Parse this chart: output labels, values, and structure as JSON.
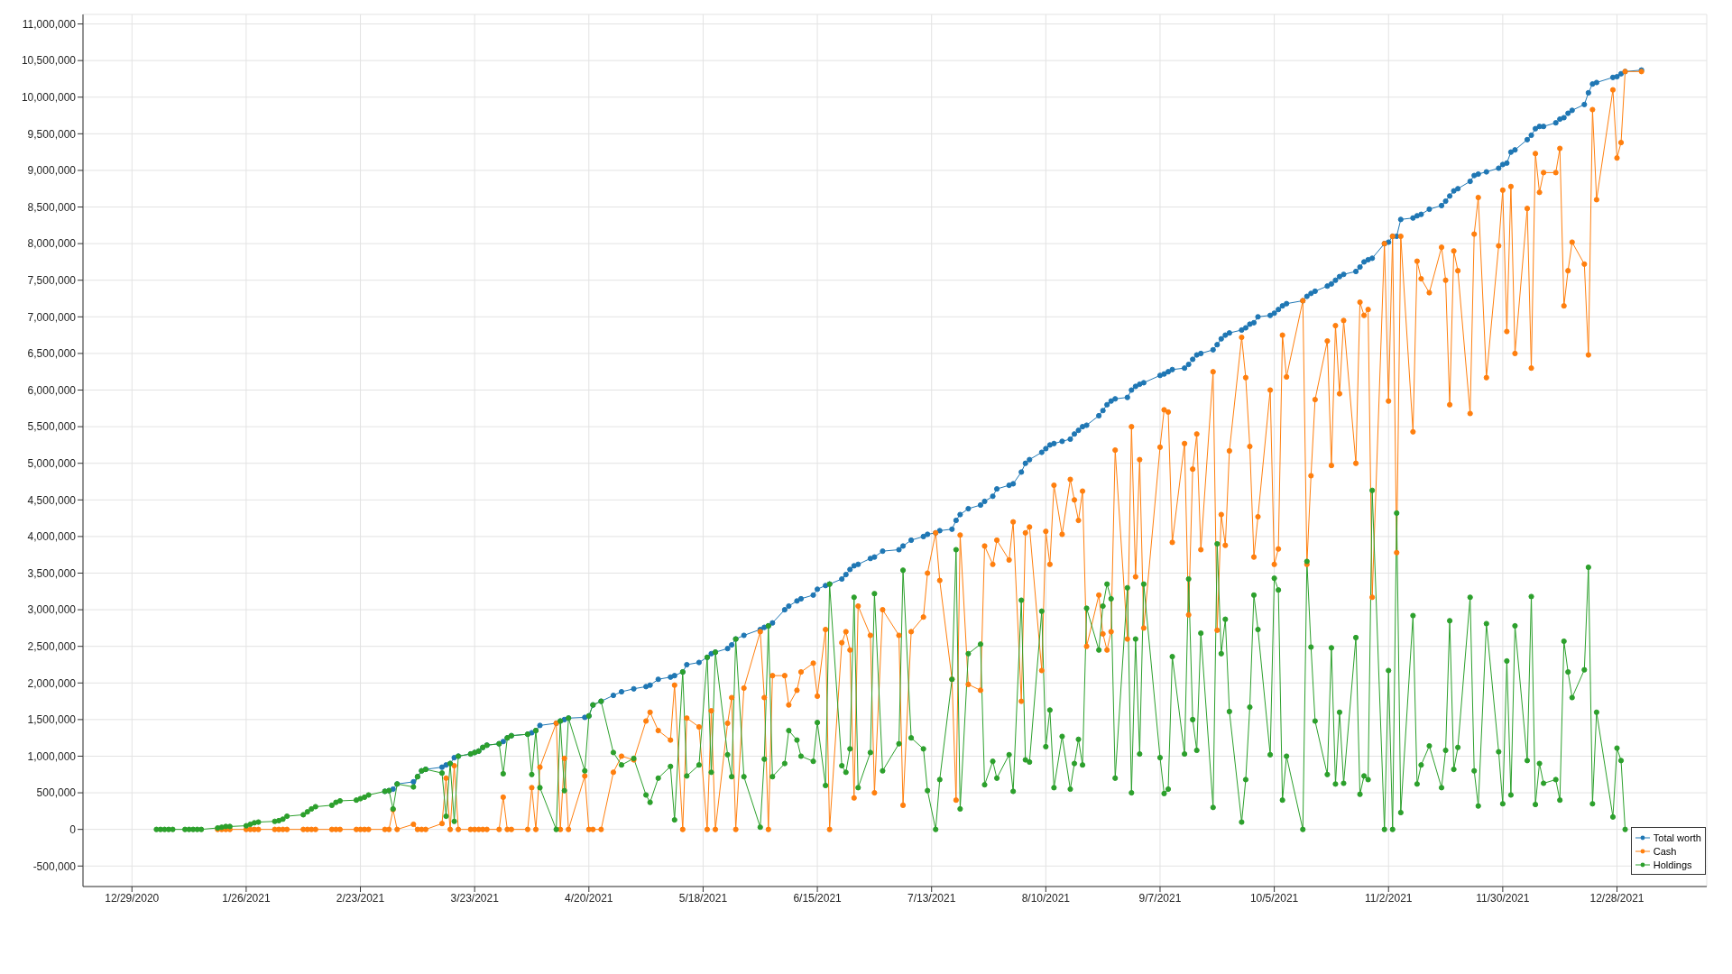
{
  "chart_data": {
    "type": "line",
    "x": [
      "2021-01-04",
      "2021-01-05",
      "2021-01-06",
      "2021-01-07",
      "2021-01-08",
      "2021-01-11",
      "2021-01-12",
      "2021-01-13",
      "2021-01-14",
      "2021-01-15",
      "2021-01-19",
      "2021-01-20",
      "2021-01-21",
      "2021-01-22",
      "2021-01-26",
      "2021-01-27",
      "2021-01-28",
      "2021-01-29",
      "2021-02-02",
      "2021-02-03",
      "2021-02-04",
      "2021-02-05",
      "2021-02-09",
      "2021-02-10",
      "2021-02-11",
      "2021-02-12",
      "2021-02-16",
      "2021-02-17",
      "2021-02-18",
      "2021-02-22",
      "2021-02-23",
      "2021-02-24",
      "2021-02-25",
      "2021-03-01",
      "2021-03-02",
      "2021-03-03",
      "2021-03-04",
      "2021-03-08",
      "2021-03-09",
      "2021-03-10",
      "2021-03-11",
      "2021-03-15",
      "2021-03-16",
      "2021-03-17",
      "2021-03-18",
      "2021-03-19",
      "2021-03-22",
      "2021-03-23",
      "2021-03-24",
      "2021-03-25",
      "2021-03-26",
      "2021-03-29",
      "2021-03-30",
      "2021-03-31",
      "2021-04-01",
      "2021-04-05",
      "2021-04-06",
      "2021-04-07",
      "2021-04-08",
      "2021-04-12",
      "2021-04-13",
      "2021-04-14",
      "2021-04-15",
      "2021-04-19",
      "2021-04-20",
      "2021-04-21",
      "2021-04-23",
      "2021-04-26",
      "2021-04-28",
      "2021-05-01",
      "2021-05-04",
      "2021-05-05",
      "2021-05-07",
      "2021-05-10",
      "2021-05-11",
      "2021-05-13",
      "2021-05-14",
      "2021-05-17",
      "2021-05-19",
      "2021-05-20",
      "2021-05-21",
      "2021-05-24",
      "2021-05-25",
      "2021-05-26",
      "2021-05-28",
      "2021-06-01",
      "2021-06-02",
      "2021-06-03",
      "2021-06-04",
      "2021-06-07",
      "2021-06-08",
      "2021-06-10",
      "2021-06-11",
      "2021-06-14",
      "2021-06-15",
      "2021-06-17",
      "2021-06-18",
      "2021-06-21",
      "2021-06-22",
      "2021-06-23",
      "2021-06-24",
      "2021-06-25",
      "2021-06-28",
      "2021-06-29",
      "2021-07-01",
      "2021-07-05",
      "2021-07-06",
      "2021-07-08",
      "2021-07-11",
      "2021-07-12",
      "2021-07-14",
      "2021-07-15",
      "2021-07-18",
      "2021-07-19",
      "2021-07-20",
      "2021-07-22",
      "2021-07-25",
      "2021-07-26",
      "2021-07-28",
      "2021-07-29",
      "2021-08-01",
      "2021-08-02",
      "2021-08-04",
      "2021-08-05",
      "2021-08-06",
      "2021-08-09",
      "2021-08-10",
      "2021-08-11",
      "2021-08-12",
      "2021-08-14",
      "2021-08-16",
      "2021-08-17",
      "2021-08-18",
      "2021-08-19",
      "2021-08-20",
      "2021-08-23",
      "2021-08-24",
      "2021-08-25",
      "2021-08-26",
      "2021-08-27",
      "2021-08-30",
      "2021-08-31",
      "2021-09-01",
      "2021-09-02",
      "2021-09-03",
      "2021-09-07",
      "2021-09-08",
      "2021-09-09",
      "2021-09-10",
      "2021-09-13",
      "2021-09-14",
      "2021-09-15",
      "2021-09-16",
      "2021-09-17",
      "2021-09-20",
      "2021-09-21",
      "2021-09-22",
      "2021-09-23",
      "2021-09-24",
      "2021-09-27",
      "2021-09-28",
      "2021-09-29",
      "2021-09-30",
      "2021-10-01",
      "2021-10-04",
      "2021-10-05",
      "2021-10-06",
      "2021-10-07",
      "2021-10-08",
      "2021-10-12",
      "2021-10-13",
      "2021-10-14",
      "2021-10-15",
      "2021-10-18",
      "2021-10-19",
      "2021-10-20",
      "2021-10-21",
      "2021-10-22",
      "2021-10-25",
      "2021-10-26",
      "2021-10-27",
      "2021-10-28",
      "2021-10-29",
      "2021-11-01",
      "2021-11-02",
      "2021-11-03",
      "2021-11-04",
      "2021-11-05",
      "2021-11-08",
      "2021-11-09",
      "2021-11-10",
      "2021-11-12",
      "2021-11-15",
      "2021-11-16",
      "2021-11-17",
      "2021-11-18",
      "2021-11-19",
      "2021-11-22",
      "2021-11-23",
      "2021-11-24",
      "2021-11-26",
      "2021-11-29",
      "2021-11-30",
      "2021-12-01",
      "2021-12-02",
      "2021-12-03",
      "2021-12-06",
      "2021-12-07",
      "2021-12-08",
      "2021-12-09",
      "2021-12-10",
      "2021-12-13",
      "2021-12-14",
      "2021-12-15",
      "2021-12-16",
      "2021-12-17",
      "2021-12-20",
      "2021-12-21",
      "2021-12-22",
      "2021-12-23",
      "2021-12-27",
      "2021-12-28",
      "2021-12-29",
      "2021-12-30",
      "2022-01-03"
    ],
    "series": [
      {
        "name": "Total worth",
        "color": "#1f77b4",
        "values": [
          null,
          null,
          null,
          null,
          null,
          null,
          null,
          null,
          null,
          null,
          null,
          null,
          null,
          null,
          null,
          null,
          null,
          null,
          null,
          null,
          null,
          null,
          null,
          null,
          null,
          null,
          null,
          null,
          null,
          null,
          null,
          null,
          null,
          520000,
          530000,
          550000,
          620000,
          650000,
          720000,
          800000,
          820000,
          850000,
          880000,
          900000,
          980000,
          1000000,
          1030000,
          1050000,
          1070000,
          1120000,
          1150000,
          1170000,
          1200000,
          1250000,
          1280000,
          1300000,
          1320000,
          1350000,
          1420000,
          1450000,
          1480000,
          1500000,
          1520000,
          1530000,
          1550000,
          1700000,
          1750000,
          1830000,
          1880000,
          1920000,
          1950000,
          1970000,
          2050000,
          2080000,
          2100000,
          2150000,
          2250000,
          2280000,
          2350000,
          2400000,
          2420000,
          2470000,
          2520000,
          2600000,
          2650000,
          2730000,
          2760000,
          2780000,
          2820000,
          3000000,
          3050000,
          3120000,
          3150000,
          3200000,
          3280000,
          3330000,
          3350000,
          3420000,
          3480000,
          3550000,
          3600000,
          3620000,
          3700000,
          3720000,
          3800000,
          3820000,
          3870000,
          3950000,
          4000000,
          4030000,
          4050000,
          4080000,
          4100000,
          4220000,
          4300000,
          4380000,
          4430000,
          4480000,
          4550000,
          4650000,
          4700000,
          4720000,
          4880000,
          5000000,
          5050000,
          5150000,
          5200000,
          5250000,
          5270000,
          5300000,
          5330000,
          5400000,
          5450000,
          5500000,
          5520000,
          5650000,
          5720000,
          5800000,
          5850000,
          5880000,
          5900000,
          6000000,
          6050000,
          6080000,
          6100000,
          6200000,
          6220000,
          6250000,
          6280000,
          6300000,
          6350000,
          6420000,
          6480000,
          6500000,
          6550000,
          6620000,
          6700000,
          6750000,
          6780000,
          6820000,
          6850000,
          6900000,
          6920000,
          7000000,
          7020000,
          7050000,
          7100000,
          7150000,
          7180000,
          7220000,
          7280000,
          7320000,
          7350000,
          7420000,
          7450000,
          7500000,
          7550000,
          7580000,
          7620000,
          7680000,
          7750000,
          7780000,
          7800000,
          8000000,
          8020000,
          8100000,
          8100000,
          8330000,
          8350000,
          8380000,
          8400000,
          8470000,
          8520000,
          8580000,
          8650000,
          8720000,
          8750000,
          8850000,
          8930000,
          8950000,
          8980000,
          9030000,
          9080000,
          9100000,
          9250000,
          9280000,
          9420000,
          9480000,
          9570000,
          9600000,
          9600000,
          9650000,
          9700000,
          9720000,
          9780000,
          9820000,
          9900000,
          10060000,
          10180000,
          10200000,
          10270000,
          10280000,
          10320000,
          10350000,
          10370000
        ]
      },
      {
        "name": "Cash",
        "color": "#ff7f0e",
        "values": [
          null,
          null,
          null,
          null,
          null,
          null,
          null,
          null,
          null,
          null,
          0,
          0,
          0,
          0,
          0,
          0,
          0,
          0,
          0,
          0,
          0,
          0,
          0,
          0,
          0,
          0,
          0,
          0,
          0,
          0,
          0,
          0,
          0,
          0,
          0,
          270000,
          0,
          70000,
          0,
          0,
          0,
          80000,
          700000,
          0,
          870000,
          0,
          0,
          0,
          0,
          0,
          0,
          0,
          440000,
          0,
          0,
          0,
          570000,
          0,
          850000,
          1450000,
          0,
          970000,
          0,
          730000,
          0,
          0,
          0,
          780000,
          1000000,
          950000,
          1480000,
          1600000,
          1350000,
          1220000,
          1970000,
          0,
          1520000,
          1400000,
          0,
          1620000,
          0,
          1450000,
          1800000,
          0,
          1930000,
          2700000,
          1800000,
          0,
          2100000,
          2100000,
          1700000,
          1900000,
          2150000,
          2270000,
          1820000,
          2730000,
          0,
          2550000,
          2700000,
          2450000,
          430000,
          3050000,
          2650000,
          500000,
          3000000,
          2650000,
          330000,
          2700000,
          2900000,
          3500000,
          4050000,
          3400000,
          2050000,
          400000,
          4020000,
          1980000,
          1900000,
          3870000,
          3620000,
          3950000,
          3680000,
          4200000,
          1750000,
          4050000,
          4130000,
          2170000,
          4070000,
          3620000,
          4700000,
          4030000,
          4780000,
          4500000,
          4220000,
          4620000,
          2500000,
          3200000,
          2670000,
          2450000,
          2700000,
          5180000,
          2600000,
          5500000,
          3450000,
          5050000,
          2750000,
          5220000,
          5730000,
          5700000,
          3920000,
          5270000,
          2930000,
          4920000,
          5400000,
          3820000,
          6250000,
          2720000,
          4300000,
          3880000,
          5170000,
          6720000,
          6170000,
          5230000,
          3720000,
          4270000,
          6000000,
          3620000,
          3830000,
          6750000,
          6180000,
          7220000,
          3620000,
          4830000,
          5870000,
          6670000,
          4970000,
          6880000,
          5950000,
          6950000,
          5000000,
          7200000,
          7020000,
          7100000,
          3170000,
          8000000,
          5850000,
          8100000,
          3780000,
          8100000,
          5430000,
          7760000,
          7520000,
          7330000,
          7950000,
          7500000,
          5800000,
          7900000,
          7630000,
          5680000,
          8130000,
          8630000,
          6170000,
          7970000,
          8730000,
          6800000,
          8780000,
          6500000,
          8480000,
          6300000,
          9230000,
          8700000,
          8970000,
          8970000,
          9300000,
          7150000,
          7630000,
          8020000,
          7720000,
          6480000,
          9830000,
          8600000,
          10100000,
          9170000,
          9380000,
          10350000,
          10350000
        ]
      },
      {
        "name": "Holdings",
        "color": "#2ca02c",
        "values": [
          0,
          0,
          0,
          0,
          0,
          0,
          0,
          0,
          0,
          0,
          20000,
          30000,
          40000,
          40000,
          50000,
          70000,
          90000,
          100000,
          110000,
          120000,
          140000,
          180000,
          200000,
          240000,
          280000,
          310000,
          330000,
          370000,
          390000,
          400000,
          420000,
          440000,
          470000,
          520000,
          530000,
          280000,
          620000,
          580000,
          720000,
          800000,
          820000,
          770000,
          180000,
          900000,
          110000,
          1000000,
          1030000,
          1050000,
          1070000,
          1120000,
          1150000,
          1170000,
          760000,
          1250000,
          1280000,
          1300000,
          750000,
          1350000,
          570000,
          0,
          1480000,
          530000,
          1520000,
          800000,
          1550000,
          1700000,
          1750000,
          1050000,
          880000,
          970000,
          470000,
          370000,
          700000,
          860000,
          130000,
          2150000,
          730000,
          880000,
          2350000,
          780000,
          2420000,
          1020000,
          720000,
          2600000,
          720000,
          30000,
          960000,
          2780000,
          720000,
          900000,
          1350000,
          1220000,
          1000000,
          930000,
          1460000,
          600000,
          3350000,
          870000,
          780000,
          1100000,
          3170000,
          570000,
          1050000,
          3220000,
          800000,
          1170000,
          3540000,
          1250000,
          1100000,
          530000,
          0,
          680000,
          2050000,
          3820000,
          280000,
          2400000,
          2530000,
          610000,
          930000,
          700000,
          1020000,
          520000,
          3130000,
          950000,
          920000,
          2980000,
          1130000,
          1630000,
          570000,
          1270000,
          550000,
          900000,
          1230000,
          880000,
          3020000,
          2450000,
          3050000,
          3350000,
          3150000,
          700000,
          3300000,
          500000,
          2600000,
          1030000,
          3350000,
          980000,
          490000,
          550000,
          2360000,
          1030000,
          3420000,
          1500000,
          1080000,
          2680000,
          300000,
          3900000,
          2400000,
          2870000,
          1610000,
          100000,
          680000,
          1670000,
          3200000,
          2730000,
          1020000,
          3430000,
          3270000,
          400000,
          1000000,
          0,
          3660000,
          2490000,
          1480000,
          750000,
          2480000,
          620000,
          1600000,
          630000,
          2620000,
          480000,
          730000,
          680000,
          4630000,
          0,
          2170000,
          0,
          4320000,
          230000,
          2920000,
          620000,
          880000,
          1140000,
          570000,
          1080000,
          2850000,
          820000,
          1120000,
          3170000,
          800000,
          320000,
          2810000,
          1060000,
          350000,
          2300000,
          470000,
          2780000,
          940000,
          3180000,
          340000,
          900000,
          630000,
          680000,
          400000,
          2570000,
          2150000,
          1800000,
          2180000,
          3580000,
          350000,
          1600000,
          170000,
          1110000,
          940000,
          0,
          null
        ]
      }
    ],
    "xlim": [
      "2020-12-17",
      "2022-01-19"
    ],
    "xticks": [
      {
        "value": "2020-12-29",
        "label": "12/29/2020"
      },
      {
        "value": "2021-01-26",
        "label": "1/26/2021"
      },
      {
        "value": "2021-02-23",
        "label": "2/23/2021"
      },
      {
        "value": "2021-03-23",
        "label": "3/23/2021"
      },
      {
        "value": "2021-04-20",
        "label": "4/20/2021"
      },
      {
        "value": "2021-05-18",
        "label": "5/18/2021"
      },
      {
        "value": "2021-06-15",
        "label": "6/15/2021"
      },
      {
        "value": "2021-07-13",
        "label": "7/13/2021"
      },
      {
        "value": "2021-08-10",
        "label": "8/10/2021"
      },
      {
        "value": "2021-09-07",
        "label": "9/7/2021"
      },
      {
        "value": "2021-10-05",
        "label": "10/5/2021"
      },
      {
        "value": "2021-11-02",
        "label": "11/2/2021"
      },
      {
        "value": "2021-11-30",
        "label": "11/30/2021"
      },
      {
        "value": "2021-12-28",
        "label": "12/28/2021"
      }
    ],
    "ylim": [
      -780000,
      11130000
    ],
    "yticks": [
      {
        "value": -500000,
        "label": "-500,000"
      },
      0,
      {
        "value": 500000,
        "label": "500,000"
      },
      {
        "value": 1000000,
        "label": "1,000,000"
      },
      {
        "value": 1500000,
        "label": "1,500,000"
      },
      {
        "value": 2000000,
        "label": "2,000,000"
      },
      {
        "value": 2500000,
        "label": "2,500,000"
      },
      {
        "value": 3000000,
        "label": "3,000,000"
      },
      {
        "value": 3500000,
        "label": "3,500,000"
      },
      {
        "value": 4000000,
        "label": "4,000,000"
      },
      {
        "value": 4500000,
        "label": "4,500,000"
      },
      {
        "value": 5000000,
        "label": "5,000,000"
      },
      {
        "value": 5500000,
        "label": "5,500,000"
      },
      {
        "value": 6000000,
        "label": "6,000,000"
      },
      {
        "value": 6500000,
        "label": "6,500,000"
      },
      {
        "value": 7000000,
        "label": "7,000,000"
      },
      {
        "value": 7500000,
        "label": "7,500,000"
      },
      {
        "value": 8000000,
        "label": "8,000,000"
      },
      {
        "value": 8500000,
        "label": "8,500,000"
      },
      {
        "value": 9000000,
        "label": "9,000,000"
      },
      {
        "value": 9500000,
        "label": "9,500,000"
      },
      {
        "value": 10000000,
        "label": "10,000,000"
      },
      {
        "value": 10500000,
        "label": "10,500,000"
      },
      {
        "value": 11000000,
        "label": "11,000,000"
      }
    ],
    "grid": true,
    "legend": "bottom right",
    "marker": "circle",
    "line_style": "solid"
  }
}
